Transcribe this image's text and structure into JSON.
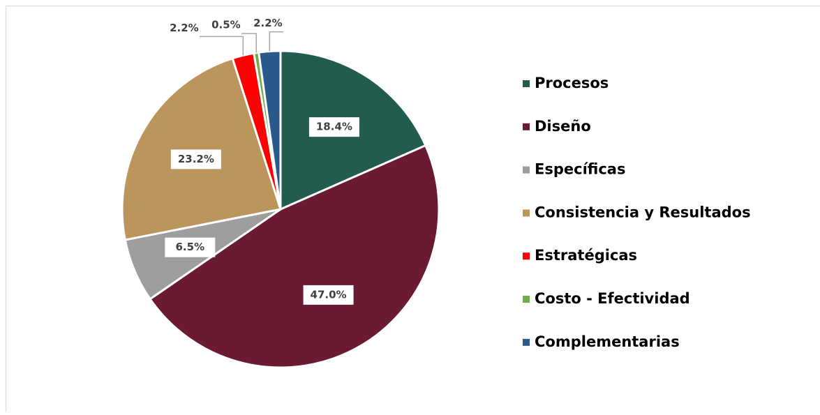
{
  "chart_data": {
    "type": "pie",
    "categories": [
      "Procesos",
      "Diseño",
      "Específicas",
      "Consistencia y Resultados",
      "Estratégicas",
      "Costo - Efectividad",
      "Complementarias"
    ],
    "values": [
      18.4,
      47.0,
      6.5,
      23.2,
      2.2,
      0.5,
      2.2
    ],
    "value_labels": [
      "18.4%",
      "47.0%",
      "6.5%",
      "23.2%",
      "2.2%",
      "0.5%",
      "2.2%"
    ],
    "colors": [
      "#235b4e",
      "#6a1b31",
      "#9e9e9e",
      "#bc955c",
      "#ff0000",
      "#70ad47",
      "#2a5a8c"
    ],
    "legend": "right"
  }
}
